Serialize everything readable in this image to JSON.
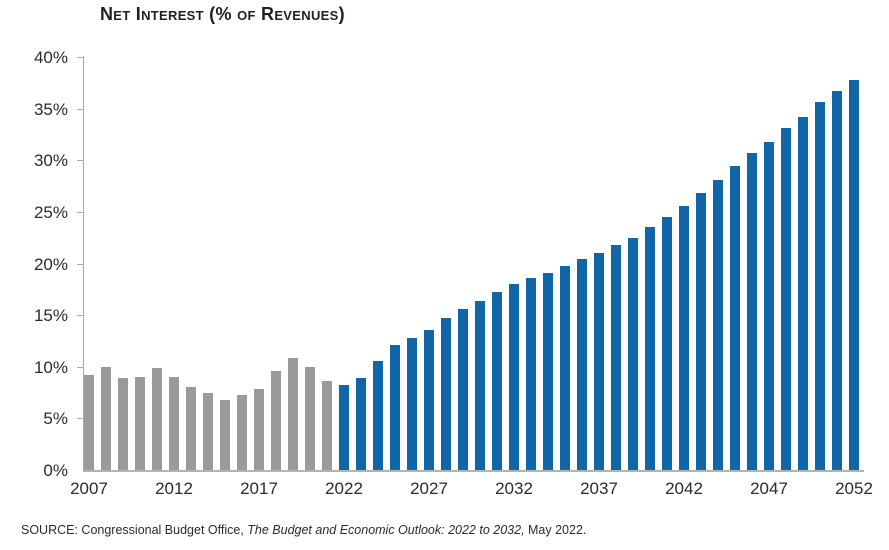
{
  "chart": {
    "title": "Net Interest (% of Revenues)"
  },
  "source": {
    "prefix": "SOURCE: Congressional Budget Office, ",
    "publication": "The Budget and Economic Outlook: 2022 to 2032,",
    "suffix": " May 2022."
  },
  "chart_data": {
    "type": "bar",
    "title": "Net Interest (% of Revenues)",
    "xlabel": "",
    "ylabel": "",
    "ylim": [
      0,
      40
    ],
    "ytick_step": 5,
    "ytick_labels": [
      "0%",
      "5%",
      "10%",
      "15%",
      "20%",
      "25%",
      "30%",
      "35%",
      "40%"
    ],
    "xtick_labels": [
      "2007",
      "2012",
      "2017",
      "2022",
      "2027",
      "2032",
      "2037",
      "2042",
      "2047",
      "2052"
    ],
    "grid": false,
    "legend": "none",
    "categories": [
      2007,
      2008,
      2009,
      2010,
      2011,
      2012,
      2013,
      2014,
      2015,
      2016,
      2017,
      2018,
      2019,
      2020,
      2021,
      2022,
      2023,
      2024,
      2025,
      2026,
      2027,
      2028,
      2029,
      2030,
      2031,
      2032,
      2033,
      2034,
      2035,
      2036,
      2037,
      2038,
      2039,
      2040,
      2041,
      2042,
      2043,
      2044,
      2045,
      2046,
      2047,
      2048,
      2049,
      2050,
      2051,
      2052
    ],
    "values": [
      9.2,
      10.0,
      8.9,
      9.0,
      9.9,
      9.0,
      8.0,
      7.5,
      6.8,
      7.3,
      7.8,
      9.6,
      10.8,
      10.0,
      8.6,
      8.2,
      8.9,
      10.6,
      12.1,
      12.8,
      13.6,
      14.7,
      15.6,
      16.4,
      17.2,
      18.0,
      18.6,
      19.1,
      19.8,
      20.4,
      21.0,
      21.8,
      22.5,
      23.5,
      24.5,
      25.6,
      26.8,
      28.1,
      29.4,
      30.7,
      31.8,
      33.1,
      34.2,
      35.6,
      36.7,
      37.8
    ],
    "segments": {
      "historical_last_year": 2021,
      "projected_first_year": 2022
    },
    "colors": {
      "historical_bar": "#9a9a9a",
      "projected_bar": "#1066a6",
      "axis": "#aaaaaa",
      "text": "#2b2b2b"
    }
  }
}
